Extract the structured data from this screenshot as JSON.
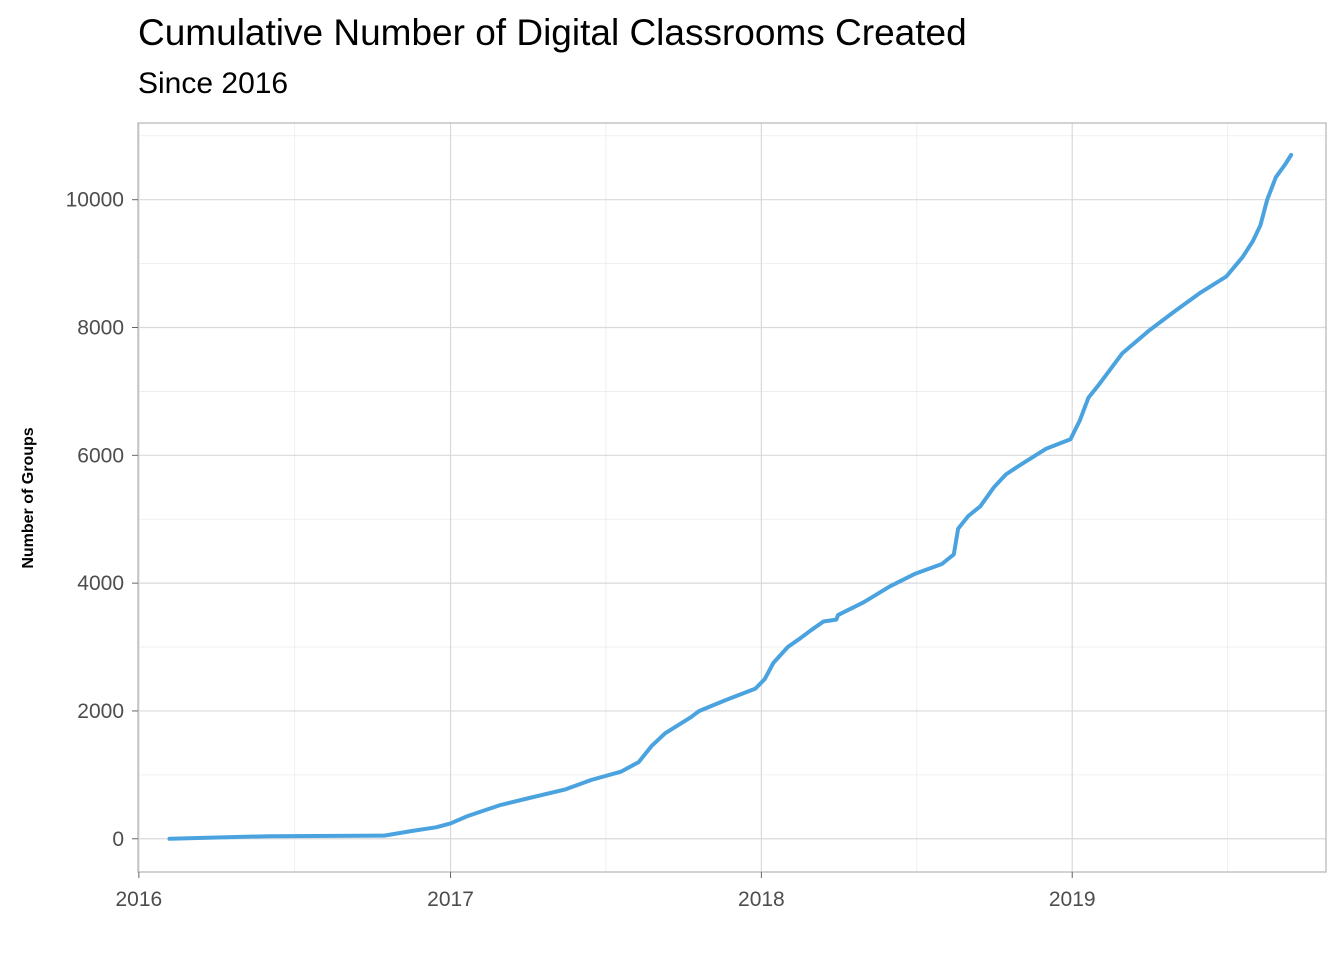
{
  "chart_data": {
    "type": "line",
    "title": "Cumulative Number of Digital Classrooms Created",
    "subtitle": "Since 2016",
    "xlabel": "",
    "ylabel": "Number of Groups",
    "x_ticks": [
      "2016",
      "2017",
      "2018",
      "2019"
    ],
    "y_ticks": [
      "0",
      "2000",
      "4000",
      "6000",
      "8000",
      "10000"
    ],
    "xlim": [
      "2015-12-31",
      "2019-10-26"
    ],
    "ylim": [
      -520,
      11200
    ],
    "grid": true,
    "legend": "none",
    "series": [
      {
        "color": "#4aa3df",
        "points": [
          [
            "2016-02-06",
            0
          ],
          [
            "2016-06-01",
            40
          ],
          [
            "2016-10-15",
            50
          ],
          [
            "2016-11-20",
            130
          ],
          [
            "2016-12-15",
            180
          ],
          [
            "2017-01-01",
            240
          ],
          [
            "2017-01-20",
            350
          ],
          [
            "2017-03-01",
            530
          ],
          [
            "2017-04-01",
            630
          ],
          [
            "2017-05-15",
            770
          ],
          [
            "2017-06-15",
            920
          ],
          [
            "2017-07-20",
            1050
          ],
          [
            "2017-08-10",
            1200
          ],
          [
            "2017-08-25",
            1450
          ],
          [
            "2017-09-10",
            1650
          ],
          [
            "2017-10-10",
            1900
          ],
          [
            "2017-10-20",
            2000
          ],
          [
            "2017-11-20",
            2170
          ],
          [
            "2017-12-25",
            2350
          ],
          [
            "2018-01-05",
            2500
          ],
          [
            "2018-01-15",
            2750
          ],
          [
            "2018-02-01",
            3000
          ],
          [
            "2018-02-15",
            3130
          ],
          [
            "2018-03-01",
            3270
          ],
          [
            "2018-03-15",
            3400
          ],
          [
            "2018-03-30",
            3430
          ],
          [
            "2018-04-01",
            3500
          ],
          [
            "2018-05-01",
            3700
          ],
          [
            "2018-06-01",
            3950
          ],
          [
            "2018-07-01",
            4150
          ],
          [
            "2018-08-01",
            4300
          ],
          [
            "2018-08-15",
            4450
          ],
          [
            "2018-08-20",
            4850
          ],
          [
            "2018-09-01",
            5050
          ],
          [
            "2018-09-15",
            5200
          ],
          [
            "2018-10-01",
            5500
          ],
          [
            "2018-10-15",
            5700
          ],
          [
            "2018-11-01",
            5850
          ],
          [
            "2018-12-01",
            6100
          ],
          [
            "2018-12-30",
            6250
          ],
          [
            "2019-01-10",
            6550
          ],
          [
            "2019-01-20",
            6900
          ],
          [
            "2019-02-01",
            7100
          ],
          [
            "2019-03-01",
            7600
          ],
          [
            "2019-04-01",
            7950
          ],
          [
            "2019-05-01",
            8250
          ],
          [
            "2019-06-01",
            8550
          ],
          [
            "2019-07-01",
            8800
          ],
          [
            "2019-07-20",
            9100
          ],
          [
            "2019-08-01",
            9350
          ],
          [
            "2019-08-10",
            9600
          ],
          [
            "2019-08-18",
            10000
          ],
          [
            "2019-08-28",
            10350
          ],
          [
            "2019-09-08",
            10550
          ],
          [
            "2019-09-15",
            10700
          ]
        ]
      }
    ]
  }
}
